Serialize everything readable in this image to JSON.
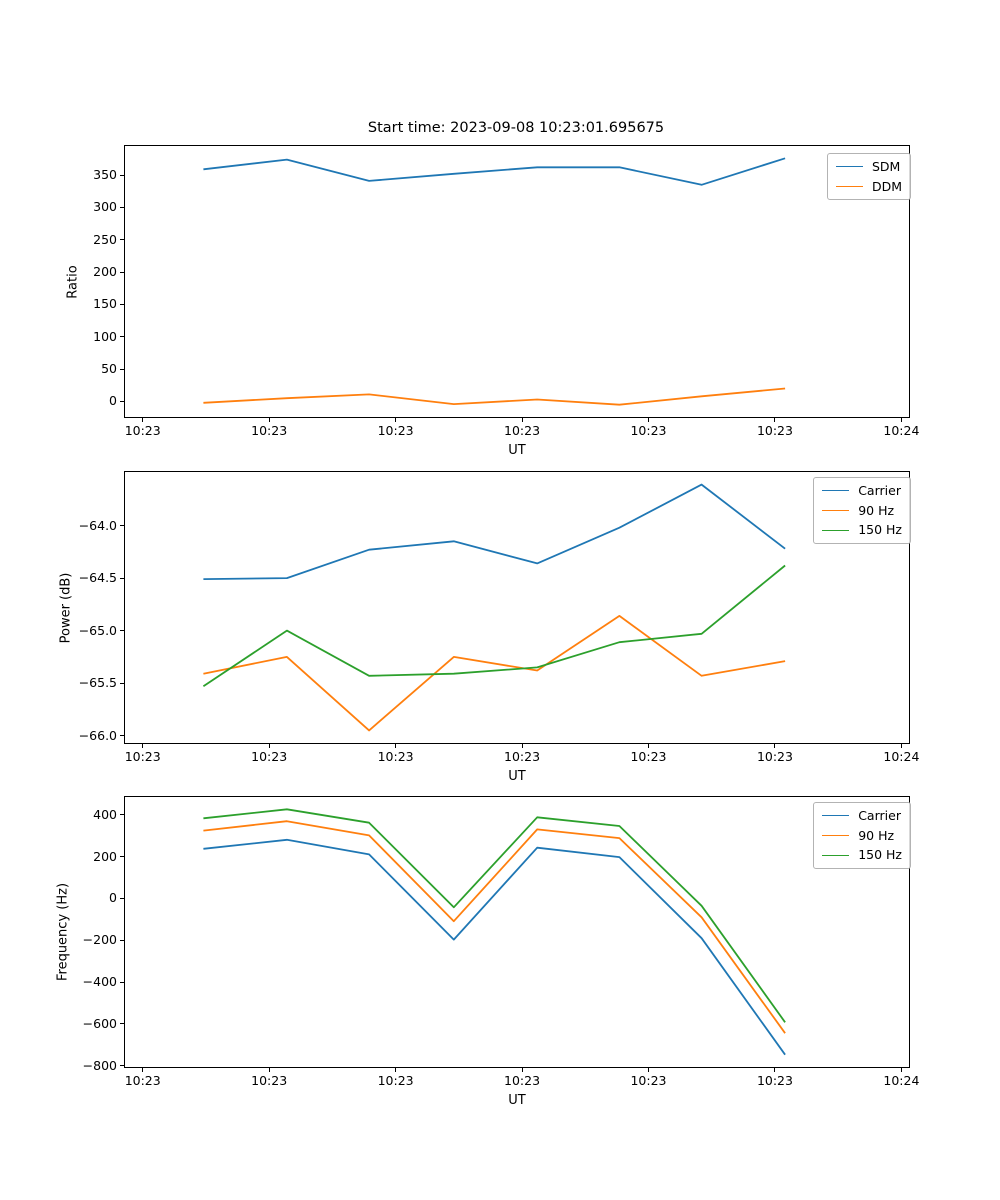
{
  "figure": {
    "title": "Start time: 2023-09-08 10:23:01.695675"
  },
  "chart_data": [
    {
      "type": "line",
      "title": "",
      "xlabel": "UT",
      "ylabel": "Ratio",
      "legend_position": "upper right",
      "grid": false,
      "x_seconds_after_10_23_00": [
        4.8,
        11.4,
        17.9,
        24.6,
        31.2,
        37.7,
        44.2,
        50.8
      ],
      "xlim_seconds": [
        -1.4,
        60.6
      ],
      "xticks_seconds": [
        0,
        10,
        20,
        30,
        40,
        50,
        60
      ],
      "xtick_labels": [
        "10:23",
        "10:23",
        "10:23",
        "10:23",
        "10:23",
        "10:23",
        "10:24"
      ],
      "ylim": [
        -24,
        395
      ],
      "yticks": [
        0,
        50,
        100,
        150,
        200,
        250,
        300,
        350
      ],
      "ytick_labels": [
        "0",
        "50",
        "100",
        "150",
        "200",
        "250",
        "300",
        "350"
      ],
      "series": [
        {
          "name": "SDM",
          "color": "#1f77b4",
          "values": [
            359,
            374,
            341,
            352,
            362,
            362,
            335,
            376
          ]
        },
        {
          "name": "DDM",
          "color": "#ff7f0e",
          "values": [
            -2,
            5,
            11,
            -4,
            3,
            -5,
            8,
            20
          ]
        }
      ]
    },
    {
      "type": "line",
      "title": "",
      "xlabel": "UT",
      "ylabel": "Power (dB)",
      "legend_position": "upper right",
      "grid": false,
      "x_seconds_after_10_23_00": [
        4.8,
        11.4,
        17.9,
        24.6,
        31.2,
        37.7,
        44.2,
        50.8
      ],
      "xlim_seconds": [
        -1.4,
        60.6
      ],
      "xticks_seconds": [
        0,
        10,
        20,
        30,
        40,
        50,
        60
      ],
      "xtick_labels": [
        "10:23",
        "10:23",
        "10:23",
        "10:23",
        "10:23",
        "10:23",
        "10:24"
      ],
      "ylim": [
        -66.07,
        -63.49
      ],
      "yticks": [
        -66.0,
        -65.5,
        -65.0,
        -64.5,
        -64.0
      ],
      "ytick_labels": [
        "−66.0",
        "−65.5",
        "−65.0",
        "−64.5",
        "−64.0"
      ],
      "series": [
        {
          "name": "Carrier",
          "color": "#1f77b4",
          "values": [
            -64.51,
            -64.5,
            -64.23,
            -64.15,
            -64.36,
            -64.02,
            -63.61,
            -64.22
          ]
        },
        {
          "name": "90 Hz",
          "color": "#ff7f0e",
          "values": [
            -65.41,
            -65.25,
            -65.95,
            -65.25,
            -65.38,
            -64.86,
            -65.43,
            -65.29
          ]
        },
        {
          "name": "150 Hz",
          "color": "#2ca02c",
          "values": [
            -65.53,
            -65.0,
            -65.43,
            -65.41,
            -65.35,
            -65.11,
            -65.03,
            -64.38
          ]
        }
      ]
    },
    {
      "type": "line",
      "title": "",
      "xlabel": "UT",
      "ylabel": "Frequency (Hz)",
      "legend_position": "upper right",
      "grid": false,
      "x_seconds_after_10_23_00": [
        4.8,
        11.4,
        17.9,
        24.6,
        31.2,
        37.7,
        44.2,
        50.8
      ],
      "xlim_seconds": [
        -1.4,
        60.6
      ],
      "xticks_seconds": [
        0,
        10,
        20,
        30,
        40,
        50,
        60
      ],
      "xtick_labels": [
        "10:23",
        "10:23",
        "10:23",
        "10:23",
        "10:23",
        "10:23",
        "10:24"
      ],
      "ylim": [
        -807,
        486
      ],
      "yticks": [
        -800,
        -600,
        -400,
        -200,
        0,
        200,
        400
      ],
      "ytick_labels": [
        "−800",
        "−600",
        "−400",
        "−200",
        "0",
        "200",
        "400"
      ],
      "series": [
        {
          "name": "Carrier",
          "color": "#1f77b4",
          "values": [
            238,
            281,
            211,
            -197,
            243,
            198,
            -190,
            -748
          ]
        },
        {
          "name": "90 Hz",
          "color": "#ff7f0e",
          "values": [
            325,
            370,
            302,
            -109,
            331,
            289,
            -90,
            -645
          ]
        },
        {
          "name": "150 Hz",
          "color": "#2ca02c",
          "values": [
            384,
            427,
            363,
            -42,
            389,
            347,
            -35,
            -593
          ]
        }
      ]
    }
  ]
}
